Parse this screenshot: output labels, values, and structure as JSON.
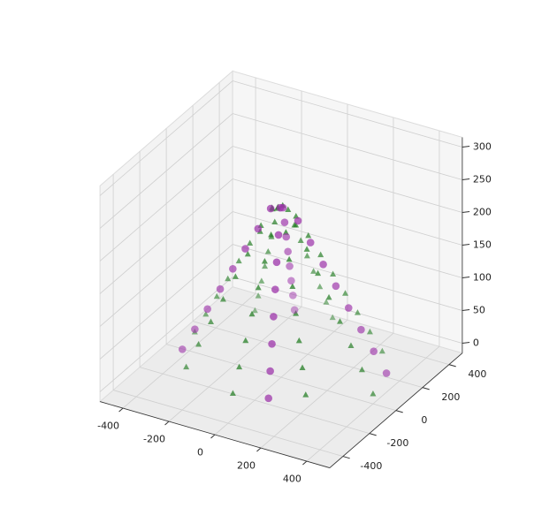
{
  "chart_data": {
    "type": "scatter3d",
    "xlim": [
      -500,
      500
    ],
    "ylim": [
      -500,
      500
    ],
    "zlim": [
      -15,
      315
    ],
    "xticks": [
      -400,
      -200,
      0,
      200,
      400
    ],
    "yticks": [
      -400,
      -200,
      0,
      200,
      400
    ],
    "zticks": [
      0,
      50,
      100,
      150,
      200,
      250,
      300
    ],
    "grid": true,
    "series": [
      {
        "color": "#1f7a1f",
        "marker": "^",
        "x": [
          400,
          279,
          0,
          -270,
          -376,
          -262,
          0,
          253,
          352,
          245,
          0,
          -236,
          -328,
          -228,
          0,
          219,
          304,
          211,
          0,
          -202,
          -280,
          -194,
          0,
          185,
          256,
          177,
          0,
          -168,
          -232,
          -160,
          0,
          151,
          208,
          143,
          0,
          -134,
          -184,
          -126,
          0,
          117,
          160,
          109,
          0,
          -100,
          -136,
          -92,
          0,
          83,
          112,
          75,
          0,
          -66,
          -88,
          -58,
          0,
          49,
          64,
          41,
          0,
          -33,
          -40,
          -24,
          0,
          16
        ],
        "y": [
          0,
          279,
          388,
          270,
          0,
          -262,
          -364,
          -253,
          0,
          245,
          340,
          236,
          0,
          -228,
          -316,
          -219,
          0,
          211,
          292,
          202,
          0,
          -194,
          -268,
          -185,
          0,
          177,
          244,
          168,
          0,
          -160,
          -220,
          -151,
          0,
          143,
          196,
          134,
          0,
          -126,
          -172,
          -117,
          0,
          109,
          148,
          100,
          0,
          -92,
          -124,
          -83,
          0,
          75,
          100,
          66,
          0,
          -58,
          -76,
          -49,
          0,
          41,
          52,
          33,
          0,
          -24,
          -28,
          -16
        ],
        "z": [
          0,
          4,
          8,
          12,
          16,
          20,
          24,
          28,
          32,
          36,
          40,
          44,
          48,
          52,
          56,
          60,
          64,
          68,
          72,
          76,
          80,
          84,
          88,
          92,
          96,
          100,
          104,
          108,
          112,
          116,
          120,
          124,
          128,
          132,
          136,
          140,
          144,
          148,
          152,
          156,
          160,
          164,
          168,
          172,
          176,
          180,
          184,
          188,
          192,
          196,
          200,
          204,
          208,
          212,
          216,
          220,
          224,
          228,
          232,
          236,
          240,
          244,
          248,
          252
        ]
      },
      {
        "color": "#9b30a8",
        "marker": "o",
        "x": [
          370,
          -149,
          -347,
          139,
          325,
          -130,
          -303,
          121,
          281,
          -112,
          -259,
          103,
          237,
          -93,
          -214,
          84,
          192,
          -75,
          -170,
          66,
          148,
          -57,
          -126,
          47,
          103,
          -38,
          -81,
          29,
          59,
          -20,
          -37,
          11
        ],
        "y": [
          153,
          359,
          -144,
          -336,
          135,
          314,
          -126,
          -292,
          116,
          270,
          -107,
          -248,
          98,
          225,
          -89,
          -203,
          80,
          181,
          -70,
          -159,
          61,
          137,
          -52,
          -115,
          43,
          92,
          -34,
          -70,
          25,
          48,
          -15,
          -26
        ],
        "z": [
          2,
          10,
          18,
          26,
          34,
          42,
          50,
          58,
          66,
          74,
          82,
          90,
          98,
          106,
          114,
          122,
          130,
          138,
          146,
          154,
          162,
          170,
          178,
          186,
          194,
          202,
          210,
          218,
          226,
          234,
          242,
          250
        ]
      }
    ]
  }
}
